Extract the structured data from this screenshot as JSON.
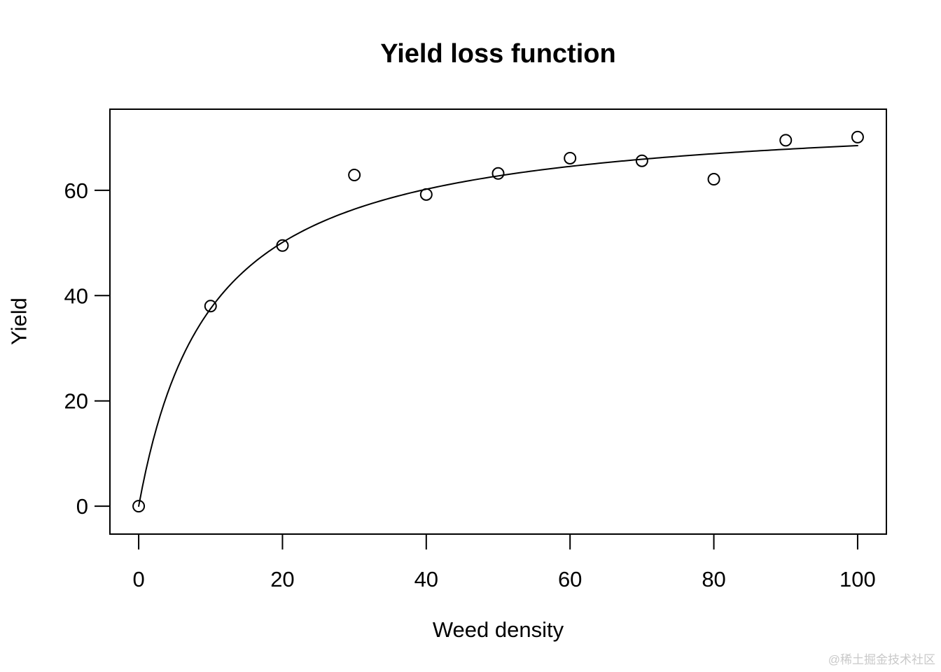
{
  "title": "Yield loss function",
  "watermark": "@稀土掘金技术社区",
  "chart_data": {
    "type": "scatter",
    "title": "Yield loss function",
    "xlabel": "Weed density",
    "ylabel": "Yield",
    "x": [
      0,
      10,
      20,
      30,
      40,
      50,
      60,
      70,
      80,
      90,
      100
    ],
    "y": [
      0,
      38.0,
      49.5,
      62.9,
      59.2,
      63.2,
      66.1,
      65.6,
      62.1,
      69.5,
      70.1
    ],
    "xticks": [
      0,
      20,
      40,
      60,
      80,
      100
    ],
    "yticks": [
      0,
      20,
      40,
      60
    ],
    "xlim": [
      -4,
      104
    ],
    "ylim": [
      -5.3,
      75.4
    ],
    "grid": false,
    "legend": null,
    "point_style": "open-circle",
    "fit_curve": {
      "model": "y = a*x / (b + x)",
      "a": 75.4,
      "b": 10.1,
      "x_range": [
        0,
        100
      ]
    },
    "colors": {
      "foreground": "#000000",
      "background": "#ffffff",
      "watermark": "#c9c9c9"
    }
  }
}
